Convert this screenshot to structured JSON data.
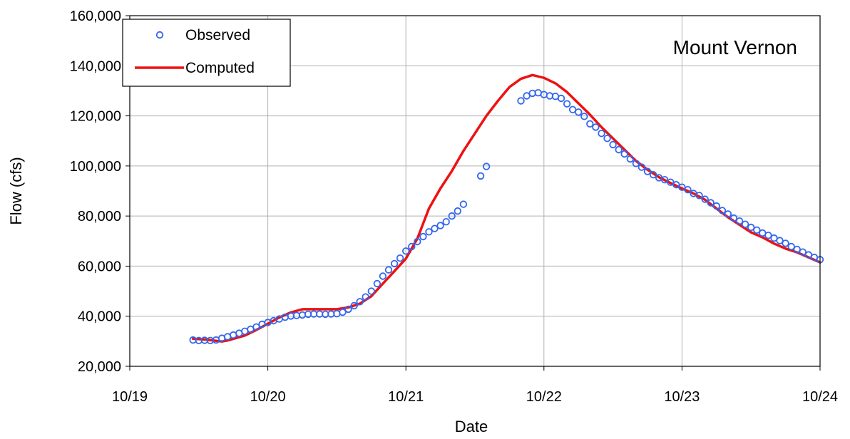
{
  "chart_data": {
    "type": "line",
    "title": "",
    "annotation": "Mount Vernon",
    "xlabel": "Date",
    "ylabel": "Flow (cfs)",
    "x_unit": "day",
    "xlim": [
      "10/19",
      "10/24"
    ],
    "ylim": [
      20000,
      160000
    ],
    "x_ticks": [
      "10/19",
      "10/20",
      "10/21",
      "10/22",
      "10/23",
      "10/24"
    ],
    "y_ticks": [
      "20,000",
      "40,000",
      "60,000",
      "80,000",
      "100,000",
      "120,000",
      "140,000",
      "160,000"
    ],
    "y_tick_values": [
      20000,
      40000,
      60000,
      80000,
      100000,
      120000,
      140000,
      160000
    ],
    "grid": true,
    "legend_position": "top-left",
    "colors": {
      "observed": "#3366ee",
      "computed": "#ee1111",
      "grid": "#b0b0b0"
    },
    "series": [
      {
        "name": "Observed",
        "style": "markers",
        "points": [
          [
            "10/19 11:00",
            30500
          ],
          [
            "10/19 12:00",
            30300
          ],
          [
            "10/19 13:00",
            30400
          ],
          [
            "10/19 14:00",
            30300
          ],
          [
            "10/19 15:00",
            30500
          ],
          [
            "10/19 16:00",
            31200
          ],
          [
            "10/19 17:00",
            31800
          ],
          [
            "10/19 18:00",
            32500
          ],
          [
            "10/19 19:00",
            33200
          ],
          [
            "10/19 20:00",
            34000
          ],
          [
            "10/19 21:00",
            34800
          ],
          [
            "10/19 22:00",
            35700
          ],
          [
            "10/19 23:00",
            36800
          ],
          [
            "10/20 00:00",
            37500
          ],
          [
            "10/20 01:00",
            38200
          ],
          [
            "10/20 02:00",
            38900
          ],
          [
            "10/20 03:00",
            39600
          ],
          [
            "10/20 04:00",
            40100
          ],
          [
            "10/20 05:00",
            40300
          ],
          [
            "10/20 06:00",
            40500
          ],
          [
            "10/20 07:00",
            40800
          ],
          [
            "10/20 08:00",
            40900
          ],
          [
            "10/20 09:00",
            40900
          ],
          [
            "10/20 10:00",
            40800
          ],
          [
            "10/20 11:00",
            40900
          ],
          [
            "10/20 12:00",
            41000
          ],
          [
            "10/20 13:00",
            41600
          ],
          [
            "10/20 14:00",
            42800
          ],
          [
            "10/20 15:00",
            44200
          ],
          [
            "10/20 16:00",
            45800
          ],
          [
            "10/20 17:00",
            47700
          ],
          [
            "10/20 18:00",
            50000
          ],
          [
            "10/20 19:00",
            53000
          ],
          [
            "10/20 20:00",
            56000
          ],
          [
            "10/20 21:00",
            58500
          ],
          [
            "10/20 22:00",
            61000
          ],
          [
            "10/20 23:00",
            63200
          ],
          [
            "10/21 00:00",
            66000
          ],
          [
            "10/21 01:00",
            67800
          ],
          [
            "10/21 02:00",
            69800
          ],
          [
            "10/21 03:00",
            71800
          ],
          [
            "10/21 04:00",
            73700
          ],
          [
            "10/21 05:00",
            75000
          ],
          [
            "10/21 06:00",
            76200
          ],
          [
            "10/21 07:00",
            77700
          ],
          [
            "10/21 08:00",
            80000
          ],
          [
            "10/21 09:00",
            82000
          ],
          [
            "10/21 10:00",
            84700
          ],
          [
            "10/21 13:00",
            96000
          ],
          [
            "10/21 14:00",
            99800
          ],
          [
            "10/21 20:00",
            126000
          ],
          [
            "10/21 21:00",
            128000
          ],
          [
            "10/21 22:00",
            129000
          ],
          [
            "10/21 23:00",
            129200
          ],
          [
            "10/22 00:00",
            128500
          ],
          [
            "10/22 01:00",
            128000
          ],
          [
            "10/22 02:00",
            127800
          ],
          [
            "10/22 03:00",
            127000
          ],
          [
            "10/22 04:00",
            124800
          ],
          [
            "10/22 05:00",
            122500
          ],
          [
            "10/22 06:00",
            121500
          ],
          [
            "10/22 07:00",
            119800
          ],
          [
            "10/22 08:00",
            116800
          ],
          [
            "10/22 09:00",
            115500
          ],
          [
            "10/22 10:00",
            113000
          ],
          [
            "10/22 11:00",
            111000
          ],
          [
            "10/22 12:00",
            108500
          ],
          [
            "10/22 13:00",
            106500
          ],
          [
            "10/22 14:00",
            104800
          ],
          [
            "10/22 15:00",
            102800
          ],
          [
            "10/22 16:00",
            101000
          ],
          [
            "10/22 17:00",
            99500
          ],
          [
            "10/22 18:00",
            97800
          ],
          [
            "10/22 19:00",
            96500
          ],
          [
            "10/22 20:00",
            95300
          ],
          [
            "10/22 21:00",
            94500
          ],
          [
            "10/22 22:00",
            93500
          ],
          [
            "10/22 23:00",
            92500
          ],
          [
            "10/23 00:00",
            91500
          ],
          [
            "10/23 01:00",
            90500
          ],
          [
            "10/23 02:00",
            89000
          ],
          [
            "10/23 03:00",
            88200
          ],
          [
            "10/23 04:00",
            86700
          ],
          [
            "10/23 05:00",
            85300
          ],
          [
            "10/23 06:00",
            84000
          ],
          [
            "10/23 07:00",
            82200
          ],
          [
            "10/23 08:00",
            80800
          ],
          [
            "10/23 09:00",
            79200
          ],
          [
            "10/23 10:00",
            78000
          ],
          [
            "10/23 11:00",
            76700
          ],
          [
            "10/23 12:00",
            75500
          ],
          [
            "10/23 13:00",
            74400
          ],
          [
            "10/23 14:00",
            73200
          ],
          [
            "10/23 15:00",
            72300
          ],
          [
            "10/23 16:00",
            71200
          ],
          [
            "10/23 17:00",
            70200
          ],
          [
            "10/23 18:00",
            69100
          ],
          [
            "10/23 19:00",
            67800
          ],
          [
            "10/23 20:00",
            66700
          ],
          [
            "10/23 21:00",
            65600
          ],
          [
            "10/23 22:00",
            64500
          ],
          [
            "10/23 23:00",
            63500
          ],
          [
            "10/24 00:00",
            62600
          ],
          [
            "10/24 00:30",
            61500
          ]
        ]
      },
      {
        "name": "Computed",
        "style": "line",
        "points": [
          [
            "10/19 11:00",
            31000
          ],
          [
            "10/19 13:00",
            30700
          ],
          [
            "10/19 15:00",
            30200
          ],
          [
            "10/19 16:00",
            29900
          ],
          [
            "10/19 17:00",
            30300
          ],
          [
            "10/19 20:00",
            32300
          ],
          [
            "10/19 22:00",
            34500
          ],
          [
            "10/20 00:00",
            37000
          ],
          [
            "10/20 02:00",
            39500
          ],
          [
            "10/20 04:00",
            41500
          ],
          [
            "10/20 06:00",
            42800
          ],
          [
            "10/20 10:00",
            42800
          ],
          [
            "10/20 12:00",
            42800
          ],
          [
            "10/20 14:00",
            43500
          ],
          [
            "10/20 16:00",
            45000
          ],
          [
            "10/20 18:00",
            48000
          ],
          [
            "10/20 20:00",
            53000
          ],
          [
            "10/20 22:00",
            58000
          ],
          [
            "10/21 00:00",
            63000
          ],
          [
            "10/21 02:00",
            71000
          ],
          [
            "10/21 04:00",
            83000
          ],
          [
            "10/21 06:00",
            91000
          ],
          [
            "10/21 08:00",
            98000
          ],
          [
            "10/21 10:00",
            106000
          ],
          [
            "10/21 12:00",
            113000
          ],
          [
            "10/21 14:00",
            120000
          ],
          [
            "10/21 16:00",
            126000
          ],
          [
            "10/21 18:00",
            131500
          ],
          [
            "10/21 20:00",
            134800
          ],
          [
            "10/21 22:00",
            136300
          ],
          [
            "10/22 00:00",
            135200
          ],
          [
            "10/22 02:00",
            133000
          ],
          [
            "10/22 04:00",
            129500
          ],
          [
            "10/22 06:00",
            125000
          ],
          [
            "10/22 08:00",
            120500
          ],
          [
            "10/22 10:00",
            115500
          ],
          [
            "10/22 12:00",
            111000
          ],
          [
            "10/22 14:00",
            106500
          ],
          [
            "10/22 16:00",
            102000
          ],
          [
            "10/22 18:00",
            98500
          ],
          [
            "10/22 20:00",
            95500
          ],
          [
            "10/22 22:00",
            93200
          ],
          [
            "10/23 00:00",
            91000
          ],
          [
            "10/23 02:00",
            89000
          ],
          [
            "10/23 04:00",
            86500
          ],
          [
            "10/23 06:00",
            83000
          ],
          [
            "10/23 08:00",
            79500
          ],
          [
            "10/23 10:00",
            76500
          ],
          [
            "10/23 12:00",
            73500
          ],
          [
            "10/23 14:00",
            71500
          ],
          [
            "10/23 16:00",
            69000
          ],
          [
            "10/23 18:00",
            67000
          ],
          [
            "10/23 20:00",
            65500
          ],
          [
            "10/23 22:00",
            63500
          ],
          [
            "10/24 00:00",
            61500
          ],
          [
            "10/24 02:00",
            58000
          ]
        ]
      }
    ]
  }
}
